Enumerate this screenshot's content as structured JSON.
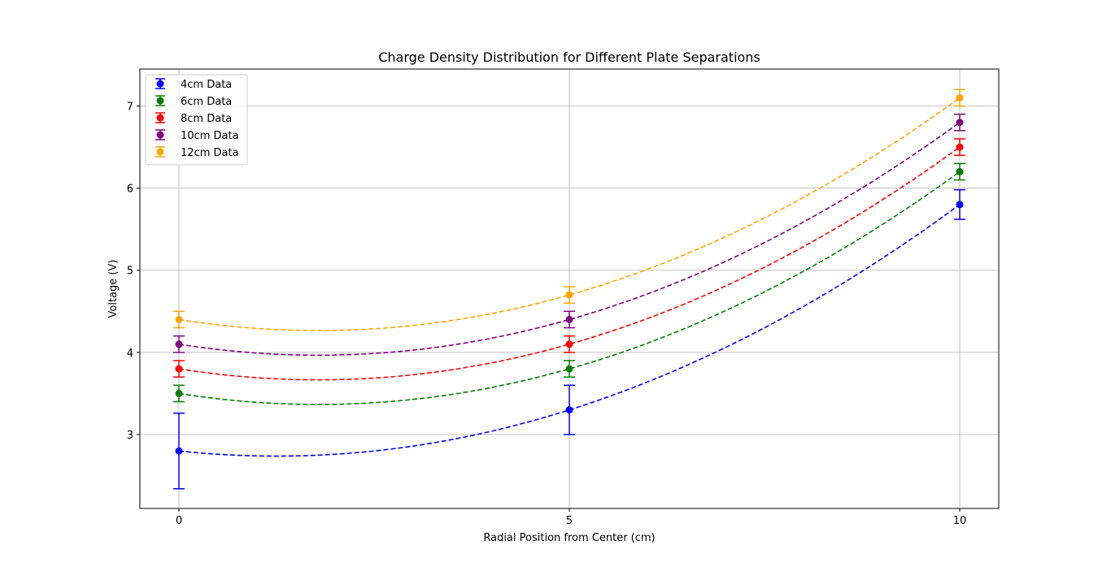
{
  "chart_data": {
    "type": "scatter",
    "title": "Charge Density Distribution for Different Plate Separations",
    "xlabel": "Radial Position from Center (cm)",
    "ylabel": "Voltage (V)",
    "xlim": [
      -0.5,
      10.5
    ],
    "ylim": [
      2.1,
      7.45
    ],
    "xticks": [
      0,
      5,
      10
    ],
    "yticks": [
      3,
      4,
      5,
      6,
      7
    ],
    "grid": true,
    "legend_position": "top-left",
    "x": [
      0,
      5,
      10
    ],
    "series": [
      {
        "name": "4cm Data",
        "color": "#0000ff",
        "values": [
          2.8,
          3.3,
          5.8
        ],
        "errors": [
          0.46,
          0.3,
          0.18
        ],
        "fit": "quadratic"
      },
      {
        "name": "6cm Data",
        "color": "#008000",
        "values": [
          3.5,
          3.8,
          6.2
        ],
        "errors": [
          0.1,
          0.1,
          0.1
        ],
        "fit": "quadratic"
      },
      {
        "name": "8cm Data",
        "color": "#ff0000",
        "values": [
          3.8,
          4.1,
          6.5
        ],
        "errors": [
          0.1,
          0.1,
          0.1
        ],
        "fit": "quadratic"
      },
      {
        "name": "10cm Data",
        "color": "#800080",
        "values": [
          4.1,
          4.4,
          6.8
        ],
        "errors": [
          0.1,
          0.1,
          0.1
        ],
        "fit": "quadratic"
      },
      {
        "name": "12cm Data",
        "color": "#ffa500",
        "values": [
          4.4,
          4.7,
          7.1
        ],
        "errors": [
          0.1,
          0.1,
          0.1
        ],
        "fit": "quadratic"
      }
    ]
  }
}
